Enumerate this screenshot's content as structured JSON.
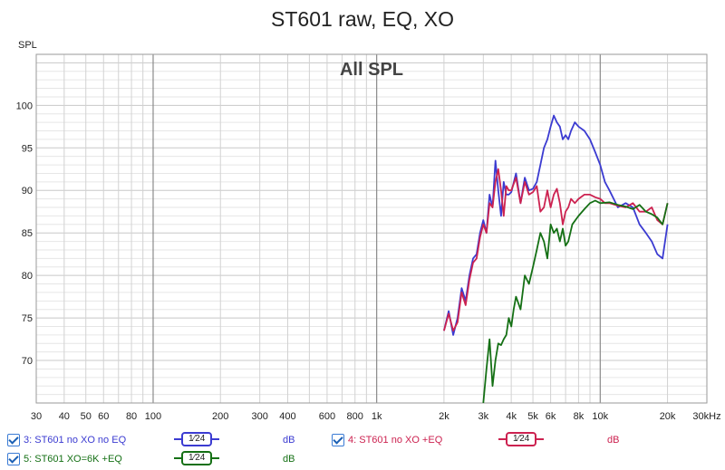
{
  "window_title": "ST601 raw, EQ, XO",
  "chart_data": {
    "type": "line",
    "title": "All SPL",
    "ylabel": "SPL",
    "xunit": "kHz",
    "xscale": "log",
    "xlim": [
      30,
      30000
    ],
    "ylim": [
      65,
      106
    ],
    "grid": true,
    "xticks": [
      {
        "v": 30,
        "label": "30"
      },
      {
        "v": 40,
        "label": "40"
      },
      {
        "v": 50,
        "label": "50"
      },
      {
        "v": 60,
        "label": "60"
      },
      {
        "v": 80,
        "label": "80"
      },
      {
        "v": 100,
        "label": "100"
      },
      {
        "v": 200,
        "label": "200"
      },
      {
        "v": 300,
        "label": "300"
      },
      {
        "v": 400,
        "label": "400"
      },
      {
        "v": 600,
        "label": "600"
      },
      {
        "v": 800,
        "label": "800"
      },
      {
        "v": 1000,
        "label": "1k"
      },
      {
        "v": 2000,
        "label": "2k"
      },
      {
        "v": 3000,
        "label": "3k"
      },
      {
        "v": 4000,
        "label": "4k"
      },
      {
        "v": 5000,
        "label": "5k"
      },
      {
        "v": 6000,
        "label": "6k"
      },
      {
        "v": 8000,
        "label": "8k"
      },
      {
        "v": 10000,
        "label": "10k"
      },
      {
        "v": 20000,
        "label": "20k"
      },
      {
        "v": 30000,
        "label": "30kHz"
      }
    ],
    "yticks": [
      {
        "v": 70,
        "label": "70"
      },
      {
        "v": 75,
        "label": "75"
      },
      {
        "v": 80,
        "label": "80"
      },
      {
        "v": 85,
        "label": "85"
      },
      {
        "v": 90,
        "label": "90"
      },
      {
        "v": 95,
        "label": "95"
      },
      {
        "v": 100,
        "label": "100"
      }
    ],
    "series": [
      {
        "name": "3: ST601 no XO no EQ",
        "color": "#3b3bd1",
        "x": [
          2000,
          2100,
          2200,
          2300,
          2400,
          2500,
          2600,
          2700,
          2800,
          2900,
          3000,
          3100,
          3200,
          3300,
          3400,
          3500,
          3600,
          3700,
          3800,
          3900,
          4000,
          4200,
          4400,
          4600,
          4800,
          5000,
          5200,
          5400,
          5600,
          5800,
          6000,
          6200,
          6400,
          6600,
          6800,
          7000,
          7200,
          7400,
          7700,
          8000,
          8500,
          9000,
          9500,
          10000,
          10500,
          11000,
          12000,
          13000,
          14000,
          15000,
          16000,
          17000,
          18000,
          19000,
          20000
        ],
        "y": [
          73.5,
          75.8,
          73,
          75,
          78.5,
          77,
          80,
          82,
          82.5,
          85,
          86.5,
          85,
          89.5,
          88,
          93.5,
          90,
          87,
          91,
          89.5,
          89.5,
          89.8,
          92,
          88.5,
          91.5,
          90,
          90.2,
          91,
          93,
          95,
          96,
          97.5,
          98.8,
          98,
          97.5,
          96,
          96.5,
          96,
          97,
          98,
          97.5,
          97,
          96,
          94.5,
          93,
          91,
          90,
          88,
          88.5,
          88,
          86,
          85,
          84,
          82.5,
          82,
          86
        ]
      },
      {
        "name": "4: ST601 no XO +EQ",
        "color": "#cc2250",
        "x": [
          2000,
          2100,
          2200,
          2300,
          2400,
          2500,
          2600,
          2700,
          2800,
          2900,
          3000,
          3100,
          3200,
          3300,
          3400,
          3500,
          3600,
          3700,
          3800,
          3900,
          4000,
          4200,
          4400,
          4600,
          4800,
          5000,
          5200,
          5400,
          5600,
          5800,
          6000,
          6200,
          6400,
          6600,
          6800,
          7000,
          7200,
          7400,
          7700,
          8000,
          8500,
          9000,
          9500,
          10000,
          10500,
          11000,
          12000,
          13000,
          14000,
          15000,
          16000,
          17000,
          18000,
          19000,
          20000
        ],
        "y": [
          73.5,
          75.5,
          73.5,
          74.5,
          78,
          76.5,
          79.5,
          81.5,
          82,
          84.5,
          86,
          85,
          88.5,
          88,
          91,
          92.5,
          90,
          87,
          90.5,
          90,
          90,
          91.5,
          88.5,
          91,
          89.5,
          89.8,
          90.5,
          87.5,
          88,
          90,
          88,
          89.5,
          90.2,
          88.5,
          86,
          87.5,
          88,
          89,
          88.5,
          89,
          89.5,
          89.5,
          89.2,
          89,
          88.5,
          88.5,
          88.2,
          88,
          88.5,
          87.5,
          87.5,
          88,
          86.5,
          86,
          88.5
        ]
      },
      {
        "name": "5: ST601 XO=6K +EQ",
        "color": "#157015",
        "x": [
          3000,
          3100,
          3200,
          3300,
          3400,
          3500,
          3600,
          3700,
          3800,
          3900,
          4000,
          4100,
          4200,
          4400,
          4600,
          4800,
          5000,
          5200,
          5400,
          5600,
          5800,
          6000,
          6200,
          6400,
          6600,
          6800,
          7000,
          7200,
          7500,
          8000,
          8500,
          9000,
          9500,
          10000,
          11000,
          12000,
          13000,
          14000,
          15000,
          16000,
          17000,
          18000,
          19000,
          20000
        ],
        "y": [
          65,
          69,
          72.5,
          67,
          70,
          72,
          71.8,
          72.5,
          73,
          75,
          74,
          76,
          77.5,
          76,
          80,
          79,
          81,
          83,
          85,
          84,
          82,
          86,
          85,
          85.5,
          84,
          85.5,
          83.5,
          84,
          86,
          87,
          87.8,
          88.5,
          88.8,
          88.5,
          88.6,
          88.3,
          88.1,
          87.8,
          88.3,
          87.5,
          87.2,
          86.8,
          86,
          88.5
        ]
      }
    ]
  },
  "legend": {
    "smoothing_label": "1⁄24",
    "unit": "dB",
    "items": [
      {
        "label": "3: ST601 no XO no EQ",
        "color": "#3b3bd1"
      },
      {
        "label": "4: ST601 no XO +EQ",
        "color": "#cc2250"
      },
      {
        "label": "5: ST601 XO=6K +EQ",
        "color": "#157015"
      }
    ]
  }
}
